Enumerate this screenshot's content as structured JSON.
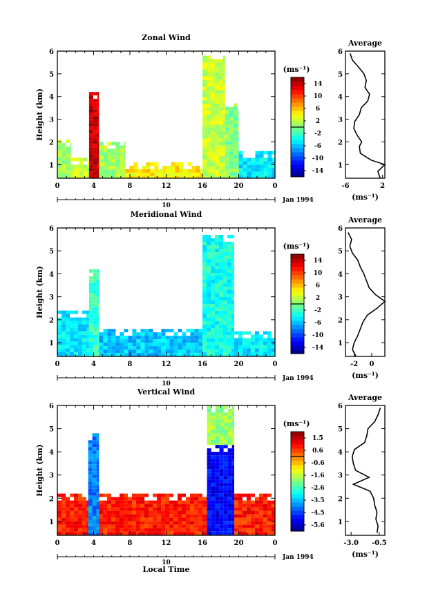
{
  "figure": {
    "date_label": "Jan 1994",
    "day_label": "10",
    "xlabel_bottom": "Local Time",
    "profile_title": "Average"
  },
  "chart_data": [
    {
      "type": "heatmap",
      "title": "Zonal Wind",
      "ylabel": "Height (km)",
      "xlabel": "",
      "x_ticks": [
        "0",
        "4",
        "8",
        "12",
        "16",
        "20",
        "0"
      ],
      "x_range": [
        0,
        24
      ],
      "y_ticks": [
        "1",
        "2",
        "3",
        "4",
        "5",
        "6"
      ],
      "y_range": [
        0.4,
        6
      ],
      "colorbar": {
        "unit": "(ms⁻¹)",
        "ticks": [
          "14",
          "10",
          "6",
          "2",
          "-2",
          "-6",
          "-10",
          "-14"
        ],
        "range": [
          -14,
          14
        ]
      },
      "regions": [
        {
          "x": [
            0.0,
            1.5
          ],
          "y": [
            0.4,
            2.1
          ],
          "value": 1
        },
        {
          "x": [
            1.5,
            3.5
          ],
          "y": [
            0.4,
            1.3
          ],
          "value": 2
        },
        {
          "x": [
            3.5,
            4.6
          ],
          "y": [
            0.4,
            4.2
          ],
          "value": 12
        },
        {
          "x": [
            4.6,
            7.5
          ],
          "y": [
            0.4,
            2.0
          ],
          "value": 1
        },
        {
          "x": [
            7.5,
            16.2
          ],
          "y": [
            0.4,
            1.1
          ],
          "value": 4
        },
        {
          "x": [
            16.0,
            18.5
          ],
          "y": [
            0.4,
            5.8
          ],
          "value": 2
        },
        {
          "x": [
            18.5,
            20.0
          ],
          "y": [
            0.4,
            3.7
          ],
          "value": 0
        },
        {
          "x": [
            20.0,
            24.0
          ],
          "y": [
            0.4,
            1.6
          ],
          "value": -4
        }
      ],
      "profile": {
        "xlabel": "(ms⁻¹)",
        "x_ticks": [
          "-6",
          "2"
        ],
        "x_range": [
          -6,
          2.5
        ],
        "heights": [
          0.4,
          0.7,
          1.0,
          1.2,
          1.5,
          1.8,
          2.0,
          2.3,
          2.6,
          2.9,
          3.2,
          3.5,
          3.8,
          4.1,
          4.4,
          4.7,
          5.0,
          5.3,
          5.6,
          5.9
        ],
        "values": [
          1.5,
          1.0,
          2.5,
          -0.5,
          -2.8,
          -3.0,
          -2.5,
          -3.5,
          -4.2,
          -4.0,
          -3.0,
          -2.6,
          -1.2,
          -0.8,
          -1.8,
          -1.5,
          -2.0,
          -3.2,
          -4.5,
          -5.0
        ]
      }
    },
    {
      "type": "heatmap",
      "title": "Meridional Wind",
      "ylabel": "Height (km)",
      "xlabel": "",
      "x_ticks": [
        "0",
        "4",
        "8",
        "12",
        "16",
        "20",
        "0"
      ],
      "x_range": [
        0,
        24
      ],
      "y_ticks": [
        "1",
        "2",
        "3",
        "4",
        "5",
        "6"
      ],
      "y_range": [
        0.4,
        6
      ],
      "colorbar": {
        "unit": "(ms⁻¹)",
        "ticks": [
          "14",
          "10",
          "6",
          "2",
          "-2",
          "-6",
          "-10",
          "-14"
        ],
        "range": [
          -14,
          14
        ]
      },
      "regions": [
        {
          "x": [
            0.0,
            3.5
          ],
          "y": [
            0.4,
            2.4
          ],
          "value": -4
        },
        {
          "x": [
            3.5,
            4.6
          ],
          "y": [
            0.4,
            4.2
          ],
          "value": -2
        },
        {
          "x": [
            4.6,
            16.2
          ],
          "y": [
            0.4,
            1.6
          ],
          "value": -5
        },
        {
          "x": [
            16.0,
            19.5
          ],
          "y": [
            0.4,
            5.7
          ],
          "value": -3
        },
        {
          "x": [
            19.5,
            24.0
          ],
          "y": [
            0.4,
            1.5
          ],
          "value": -4
        }
      ],
      "profile": {
        "xlabel": "(ms⁻¹)",
        "x_ticks": [
          "-2",
          "0"
        ],
        "x_range": [
          -3,
          1.5
        ],
        "heights": [
          0.4,
          0.7,
          1.0,
          1.3,
          1.6,
          1.9,
          2.2,
          2.5,
          2.8,
          3.1,
          3.4,
          3.7,
          4.0,
          4.3,
          4.6,
          4.9,
          5.2,
          5.5,
          5.8
        ],
        "values": [
          -1.8,
          -2.2,
          -2.0,
          -1.6,
          -1.3,
          -1.0,
          -0.5,
          0.6,
          1.5,
          0.4,
          -0.3,
          -0.6,
          -0.9,
          -1.3,
          -1.6,
          -2.2,
          -2.5,
          -2.3,
          -2.7
        ]
      }
    },
    {
      "type": "heatmap",
      "title": "Vertical Wind",
      "ylabel": "Height (km)",
      "xlabel": "Local Time",
      "x_ticks": [
        "0",
        "4",
        "8",
        "12",
        "16",
        "20",
        "0"
      ],
      "x_range": [
        0,
        24
      ],
      "y_ticks": [
        "1",
        "2",
        "3",
        "4",
        "5",
        "6"
      ],
      "y_range": [
        0.4,
        6
      ],
      "colorbar": {
        "unit": "(ms⁻¹)",
        "ticks": [
          "1.5",
          "0.6",
          "-0.6",
          "-1.6",
          "-2.6",
          "-3.5",
          "-4.5",
          "-5.6"
        ],
        "range": [
          -6.0,
          2.0
        ]
      },
      "regions": [
        {
          "x": [
            0.0,
            16.5
          ],
          "y": [
            0.4,
            2.2
          ],
          "value": 0.8
        },
        {
          "x": [
            19.5,
            24.0
          ],
          "y": [
            0.4,
            2.2
          ],
          "value": 0.8
        },
        {
          "x": [
            3.4,
            4.6
          ],
          "y": [
            0.4,
            4.8
          ],
          "value": -4.0
        },
        {
          "x": [
            16.5,
            19.5
          ],
          "y": [
            0.4,
            4.3
          ],
          "value": -5.0
        },
        {
          "x": [
            16.5,
            19.5
          ],
          "y": [
            4.3,
            6.0
          ],
          "value": -1.8
        }
      ],
      "profile": {
        "xlabel": "(ms⁻¹)",
        "x_ticks": [
          "-3.0",
          "-0.5"
        ],
        "x_range": [
          -3.5,
          0
        ],
        "heights": [
          0.5,
          0.8,
          1.1,
          1.4,
          1.7,
          2.0,
          2.3,
          2.6,
          2.9,
          3.2,
          3.5,
          3.8,
          4.1,
          4.4,
          4.7,
          5.0,
          5.3,
          5.6,
          5.9
        ],
        "values": [
          -0.7,
          -0.6,
          -0.8,
          -0.7,
          -0.9,
          -1.0,
          -1.3,
          -2.8,
          -1.4,
          -2.6,
          -2.8,
          -2.9,
          -2.7,
          -1.8,
          -1.6,
          -1.5,
          -0.9,
          -0.6,
          -0.4
        ]
      }
    }
  ]
}
